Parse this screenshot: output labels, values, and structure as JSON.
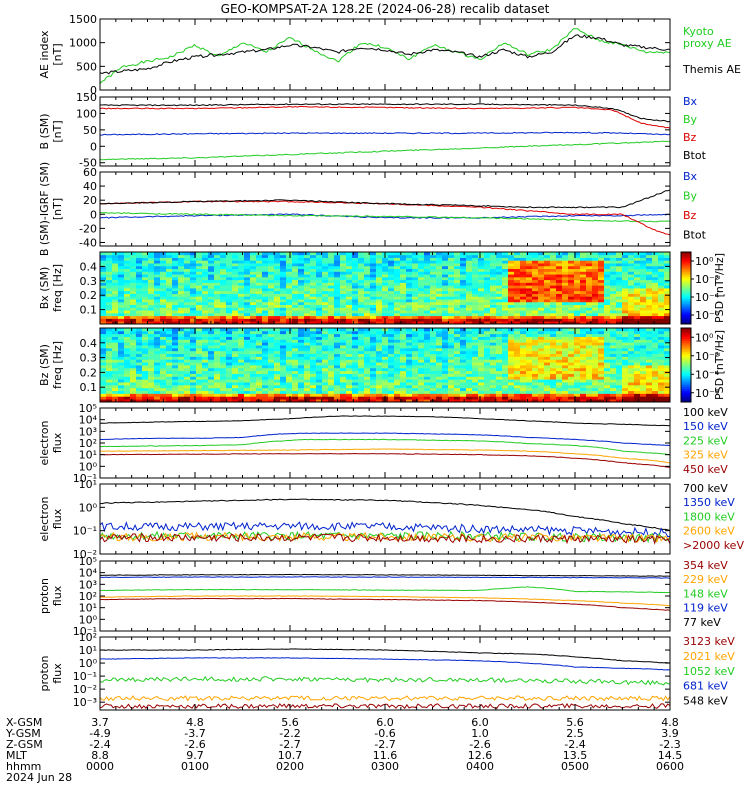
{
  "title": "GEO-KOMPSAT-2A 128.2E (2024-06-28) recalib dataset",
  "colors": {
    "black": "#000000",
    "blue": "#0022cc",
    "green": "#22cc22",
    "red": "#dd0000",
    "orange": "#ffa500",
    "darkred": "#990000",
    "lightgreen": "#33dd33"
  },
  "x_tick_labels": [
    "0000",
    "0100",
    "0200",
    "0300",
    "0400",
    "0500",
    "0600"
  ],
  "ephemeris": {
    "row_labels": [
      "X-GSM",
      "Y-GSM",
      "Z-GSM",
      "MLT",
      "hhmm"
    ],
    "date": "2024 Jun 28",
    "columns": [
      [
        "3.7",
        "-4.9",
        "-2.4",
        "8.8",
        "0000"
      ],
      [
        "4.8",
        "-3.7",
        "-2.6",
        "9.7",
        "0100"
      ],
      [
        "5.6",
        "-2.2",
        "-2.7",
        "10.7",
        "0200"
      ],
      [
        "6.0",
        "-0.6",
        "-2.7",
        "11.6",
        "0300"
      ],
      [
        "6.0",
        "1.0",
        "-2.6",
        "12.6",
        "0400"
      ],
      [
        "5.6",
        "2.5",
        "-2.4",
        "13.5",
        "0500"
      ],
      [
        "4.8",
        "3.9",
        "-2.3",
        "14.5",
        "0600"
      ]
    ]
  },
  "chart_data": [
    {
      "id": "ae",
      "type": "line",
      "ylabel": [
        "AE index",
        "[nT]"
      ],
      "yticks": [
        "0",
        "500",
        "1000",
        "1500"
      ],
      "ylim": [
        0,
        1500
      ],
      "xlim": [
        "00:00",
        "06:00"
      ],
      "series": [
        {
          "name": "Kyoto",
          "name2": "proxy AE",
          "color": "green",
          "x": [
            0,
            0.25,
            0.5,
            0.75,
            1,
            1.25,
            1.5,
            1.75,
            2,
            2.25,
            2.5,
            2.75,
            3,
            3.25,
            3.5,
            3.75,
            4,
            4.25,
            4.5,
            4.75,
            5,
            5.25,
            5.5,
            5.75,
            6
          ],
          "values": [
            150,
            500,
            600,
            700,
            950,
            700,
            1000,
            800,
            1100,
            850,
            600,
            1000,
            900,
            650,
            950,
            800,
            650,
            1000,
            750,
            850,
            1300,
            1050,
            950,
            800,
            800
          ]
        },
        {
          "name": "Themis AE",
          "color": "black",
          "x": [
            0,
            0.25,
            0.5,
            0.75,
            1,
            1.25,
            1.5,
            1.75,
            2,
            2.25,
            2.5,
            2.75,
            3,
            3.25,
            3.5,
            3.75,
            4,
            4.25,
            4.5,
            4.75,
            5,
            5.25,
            5.5,
            5.75,
            6
          ],
          "values": [
            350,
            400,
            450,
            600,
            700,
            750,
            800,
            850,
            950,
            900,
            800,
            900,
            850,
            750,
            850,
            800,
            700,
            850,
            700,
            800,
            1150,
            1100,
            950,
            900,
            850
          ]
        }
      ]
    },
    {
      "id": "bsm",
      "type": "line",
      "ylabel": [
        "B (SM)",
        "[nT]"
      ],
      "yticks": [
        "-50",
        "0",
        "50",
        "100",
        "150"
      ],
      "ylim": [
        -60,
        150
      ],
      "xlim": [
        "00:00",
        "06:00"
      ],
      "series": [
        {
          "name": "Bx",
          "color": "blue",
          "x": [
            0,
            1,
            2,
            3,
            4,
            5,
            5.5,
            6
          ],
          "values": [
            35,
            38,
            40,
            40,
            40,
            42,
            40,
            35
          ]
        },
        {
          "name": "By",
          "color": "green",
          "x": [
            0,
            1,
            2,
            3,
            4,
            5,
            5.5,
            6
          ],
          "values": [
            -40,
            -35,
            -25,
            -15,
            -5,
            5,
            10,
            15
          ]
        },
        {
          "name": "Bz",
          "color": "red",
          "x": [
            0,
            1,
            2,
            3,
            4,
            5,
            5.4,
            5.7,
            6
          ],
          "values": [
            115,
            115,
            120,
            118,
            115,
            118,
            110,
            70,
            55
          ]
        },
        {
          "name": "Btot",
          "color": "black",
          "x": [
            0,
            1,
            2,
            3,
            4,
            5,
            5.4,
            5.7,
            6
          ],
          "values": [
            125,
            125,
            128,
            128,
            128,
            125,
            115,
            85,
            75
          ]
        }
      ]
    },
    {
      "id": "bmigrf",
      "type": "line",
      "ylabel": [
        "B (SM)-IGRF (SM)",
        "[nT]"
      ],
      "yticks": [
        "-40",
        "-20",
        "0",
        "20",
        "40",
        "60"
      ],
      "ylim": [
        -45,
        60
      ],
      "xlim": [
        "00:00",
        "06:00"
      ],
      "series": [
        {
          "name": "Bx",
          "color": "blue",
          "x": [
            0,
            1,
            2,
            3,
            4,
            5,
            5.5,
            6
          ],
          "values": [
            -5,
            -2,
            0,
            -5,
            -5,
            -2,
            -2,
            0
          ]
        },
        {
          "name": "By",
          "color": "green",
          "x": [
            0,
            1,
            2,
            3,
            4,
            5,
            5.5,
            6
          ],
          "values": [
            2,
            0,
            -2,
            -3,
            -5,
            -8,
            -10,
            -10
          ]
        },
        {
          "name": "Bz",
          "color": "red",
          "x": [
            0,
            1,
            2,
            3,
            4,
            4.5,
            5,
            5.5,
            5.8,
            6
          ],
          "values": [
            15,
            18,
            18,
            15,
            10,
            5,
            0,
            0,
            -20,
            -30
          ]
        },
        {
          "name": "Btot",
          "color": "black",
          "x": [
            0,
            1,
            2,
            3,
            4,
            4.5,
            5,
            5.5,
            5.8,
            6
          ],
          "values": [
            15,
            18,
            20,
            15,
            12,
            10,
            10,
            10,
            25,
            35
          ]
        }
      ]
    },
    {
      "id": "bx_spec",
      "type": "heatmap",
      "ylabel": [
        "Bx (SM)",
        "freq [Hz]"
      ],
      "yticks": [
        "0.1",
        "0.2",
        "0.3",
        "0.4"
      ],
      "ylim": [
        0,
        0.5
      ],
      "colorbar_label": "PSD [nT²/Hz]",
      "colorbar_ticks": [
        "10⁰",
        "10⁻²",
        "10⁻⁴",
        "10⁻⁶"
      ],
      "colorbar_range": [
        -7,
        1
      ],
      "xlim": [
        "00:00",
        "06:00"
      ]
    },
    {
      "id": "bz_spec",
      "type": "heatmap",
      "ylabel": [
        "Bz (SM)",
        "freq [Hz]"
      ],
      "yticks": [
        "0.1",
        "0.2",
        "0.3",
        "0.4"
      ],
      "ylim": [
        0,
        0.5
      ],
      "colorbar_label": "PSD [nT²/Hz]",
      "colorbar_ticks": [
        "10⁰",
        "10⁻²",
        "10⁻⁴",
        "10⁻⁶"
      ],
      "colorbar_range": [
        -7,
        1
      ],
      "xlim": [
        "00:00",
        "06:00"
      ]
    },
    {
      "id": "elec_low",
      "type": "line",
      "log": true,
      "ylabel": [
        "electron",
        "flux"
      ],
      "yticks": [
        "10⁻¹",
        "10⁰",
        "10¹",
        "10²",
        "10³",
        "10⁴",
        "10⁵"
      ],
      "ylim_exp": [
        -1,
        5
      ],
      "xlim": [
        "00:00",
        "06:00"
      ],
      "series": [
        {
          "name": "100 keV",
          "color": "black",
          "x": [
            0,
            0.5,
            1,
            1.5,
            2,
            2.5,
            3,
            3.5,
            4,
            4.5,
            5,
            5.5,
            6
          ],
          "values": [
            5000,
            6000,
            7000,
            8000,
            12000,
            20000,
            20000,
            18000,
            12000,
            8000,
            5000,
            4000,
            3000
          ]
        },
        {
          "name": "150 keV",
          "color": "blue",
          "x": [
            0,
            0.5,
            1,
            1.5,
            1.9,
            2.2,
            3,
            4,
            4.5,
            5,
            5.5,
            6
          ],
          "values": [
            200,
            250,
            250,
            300,
            600,
            700,
            700,
            500,
            300,
            200,
            100,
            60
          ]
        },
        {
          "name": "225 keV",
          "color": "green",
          "x": [
            0,
            0.5,
            1,
            1.5,
            1.9,
            2.2,
            3,
            4,
            4.5,
            5,
            5.5,
            6
          ],
          "values": [
            50,
            55,
            60,
            70,
            150,
            200,
            200,
            150,
            90,
            60,
            20,
            10
          ]
        },
        {
          "name": "325 keV",
          "color": "orange",
          "x": [
            0,
            1,
            2,
            3,
            4,
            4.5,
            5,
            5.5,
            6
          ],
          "values": [
            20,
            22,
            25,
            30,
            25,
            20,
            12,
            5,
            2
          ]
        },
        {
          "name": "450 keV",
          "color": "darkred",
          "x": [
            0,
            1,
            2,
            3,
            4,
            4.5,
            5,
            5.5,
            6
          ],
          "values": [
            10,
            11,
            12,
            12,
            10,
            8,
            5,
            2,
            0.8
          ]
        }
      ]
    },
    {
      "id": "elec_high",
      "type": "line",
      "log": true,
      "ylabel": [
        "electron",
        "flux"
      ],
      "yticks": [
        "10⁻²",
        "10⁻¹",
        "10⁰",
        "10¹"
      ],
      "ylim_exp": [
        -2,
        1
      ],
      "xlim": [
        "00:00",
        "06:00"
      ],
      "series": [
        {
          "name": "700 keV",
          "color": "black",
          "x": [
            0,
            1,
            2,
            3,
            4,
            4.5,
            5,
            5.5,
            6
          ],
          "values": [
            1.5,
            1.8,
            2.2,
            2.0,
            1.2,
            0.8,
            0.4,
            0.2,
            0.1
          ]
        },
        {
          "name": "1350 keV",
          "color": "blue",
          "x": [
            0,
            1,
            2,
            3,
            4,
            5,
            6
          ],
          "values": [
            0.15,
            0.15,
            0.16,
            0.15,
            0.12,
            0.1,
            0.08
          ]
        },
        {
          "name": "1800 keV",
          "color": "green",
          "x": [
            0,
            1,
            2,
            3,
            4,
            5,
            6
          ],
          "values": [
            0.06,
            0.06,
            0.06,
            0.06,
            0.06,
            0.05,
            0.05
          ]
        },
        {
          "name": "2600 keV",
          "color": "orange",
          "x": [
            0,
            1,
            2,
            3,
            4,
            5,
            6
          ],
          "values": [
            0.055,
            0.055,
            0.055,
            0.055,
            0.05,
            0.05,
            0.045
          ]
        },
        {
          "name": ">2000 keV",
          "color": "darkred",
          "x": [
            0,
            1,
            2,
            3,
            4,
            5,
            6
          ],
          "values": [
            0.05,
            0.05,
            0.05,
            0.05,
            0.045,
            0.045,
            0.04
          ]
        }
      ]
    },
    {
      "id": "prot_low",
      "type": "line",
      "log": true,
      "ylabel": [
        "proton",
        "flux"
      ],
      "yticks": [
        "10⁻¹",
        "10⁰",
        "10¹",
        "10²",
        "10³",
        "10⁴",
        "10⁵"
      ],
      "ylim_exp": [
        -1,
        5
      ],
      "xlim": [
        "00:00",
        "06:00"
      ],
      "series": [
        {
          "name": "354 keV",
          "color": "darkred",
          "x": [
            0,
            1,
            2,
            3,
            4,
            5,
            5.5,
            6
          ],
          "values": [
            50,
            60,
            60,
            50,
            40,
            20,
            10,
            6
          ]
        },
        {
          "name": "229 keV",
          "color": "orange",
          "x": [
            0,
            1,
            2,
            3,
            4,
            5,
            5.5,
            6
          ],
          "values": [
            80,
            100,
            100,
            90,
            70,
            40,
            25,
            15
          ]
        },
        {
          "name": "148 keV",
          "color": "green",
          "x": [
            0,
            1,
            2,
            3,
            4,
            4.5,
            5,
            6
          ],
          "values": [
            300,
            350,
            350,
            320,
            300,
            600,
            250,
            200
          ]
        },
        {
          "name": "119 keV",
          "color": "blue",
          "x": [
            0,
            1,
            2,
            3,
            4,
            5,
            6
          ],
          "values": [
            4000,
            4200,
            4300,
            4200,
            4000,
            3800,
            3500
          ]
        },
        {
          "name": "77 keV",
          "color": "black",
          "x": [
            0,
            1,
            2,
            3,
            4,
            5,
            6
          ],
          "values": [
            6000,
            6500,
            6800,
            6500,
            6000,
            5500,
            5000
          ]
        }
      ]
    },
    {
      "id": "prot_high",
      "type": "line",
      "log": true,
      "ylabel": [
        "proton",
        "flux"
      ],
      "yticks": [
        "10⁻³",
        "10⁻²",
        "10⁻¹",
        "10⁰",
        "10¹",
        "10²"
      ],
      "ylim_exp": [
        -3.6,
        2
      ],
      "xlim": [
        "00:00",
        "06:00"
      ],
      "series": [
        {
          "name": "3123 keV",
          "color": "darkred",
          "x": [
            0,
            1,
            2,
            3,
            4,
            5,
            6
          ],
          "values": [
            0.0005,
            0.0005,
            0.0005,
            0.0005,
            0.0005,
            0.0005,
            0.0005
          ]
        },
        {
          "name": "2021 keV",
          "color": "orange",
          "x": [
            0,
            1,
            2,
            3,
            4,
            5,
            6
          ],
          "values": [
            0.002,
            0.002,
            0.002,
            0.002,
            0.002,
            0.002,
            0.002
          ]
        },
        {
          "name": "1052 keV",
          "color": "green",
          "x": [
            0,
            1,
            2,
            3,
            4,
            5,
            6
          ],
          "values": [
            0.05,
            0.06,
            0.06,
            0.05,
            0.05,
            0.04,
            0.03
          ]
        },
        {
          "name": "681 keV",
          "color": "blue",
          "x": [
            0,
            1,
            2,
            3,
            4,
            4.5,
            5,
            6
          ],
          "values": [
            2,
            2.5,
            2.5,
            2.0,
            1.5,
            1.0,
            0.5,
            0.3
          ]
        },
        {
          "name": "548 keV",
          "color": "black",
          "x": [
            0,
            1,
            2,
            3,
            4,
            4.5,
            5,
            5.5,
            6
          ],
          "values": [
            10,
            10,
            12,
            10,
            6,
            5,
            3,
            1.5,
            1
          ]
        }
      ]
    }
  ]
}
